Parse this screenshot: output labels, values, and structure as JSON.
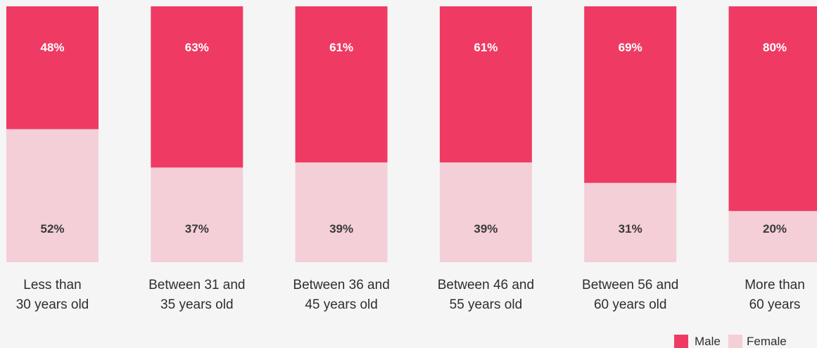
{
  "chart_data": {
    "type": "bar",
    "stacked": true,
    "normalized_percent": true,
    "categories": [
      [
        "Less than",
        "30 years old"
      ],
      [
        "Between 31 and",
        "35 years old"
      ],
      [
        "Between 36 and",
        "45 years old"
      ],
      [
        "Between 46 and",
        "55 years old"
      ],
      [
        "Between 56 and",
        "60 years old"
      ],
      [
        "More than",
        "60 years"
      ]
    ],
    "series": [
      {
        "name": "Female",
        "color": "#f4cfd7",
        "label_color": "#3a3a3a",
        "values": [
          52,
          37,
          39,
          39,
          31,
          20
        ],
        "labels": [
          "52%",
          "37%",
          "39%",
          "39%",
          "31%",
          "20%"
        ]
      },
      {
        "name": "Male",
        "color": "#ef3b63",
        "label_color": "#ffffff",
        "values": [
          48,
          63,
          61,
          61,
          69,
          80
        ],
        "labels": [
          "48%",
          "63%",
          "61%",
          "61%",
          "69%",
          "80%"
        ]
      }
    ],
    "ylim": [
      0,
      100
    ],
    "grid": false,
    "legend": {
      "placement": "bottom-right",
      "entries": [
        "Male",
        "Female"
      ]
    }
  }
}
